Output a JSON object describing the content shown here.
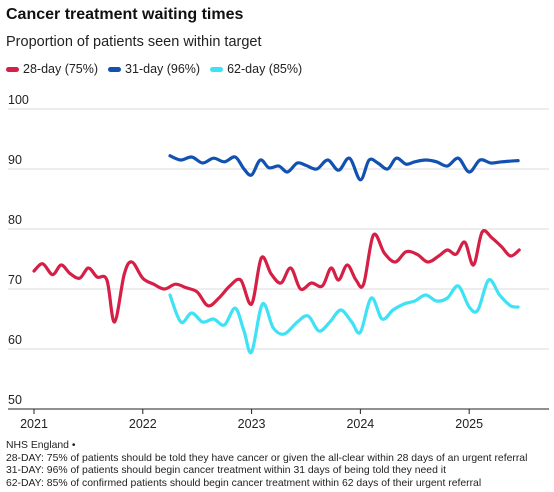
{
  "header": {
    "title": "Cancer treatment waiting times",
    "subtitle": "Proportion of patients seen within target"
  },
  "footer": {
    "source": "NHS England •",
    "notes": [
      "28-DAY: 75% of patients should be told they have cancer or given the all-clear within 28 days of an urgent referral",
      "31-DAY: 96% of patients should begin cancer treatment within 31 days of being told they need it",
      "62-DAY: 85% of confirmed patients should begin cancer treatment within 62 days of their urgent referral"
    ]
  },
  "chart_data": {
    "type": "line",
    "title": "Cancer treatment waiting times",
    "subtitle": "Proportion of patients seen within target",
    "xlabel": "",
    "ylabel": "",
    "xlim": [
      2021.0,
      2025.55
    ],
    "ylim": [
      50,
      100
    ],
    "yticks": [
      50,
      60,
      70,
      80,
      90,
      100
    ],
    "xticks": [
      "2021",
      "2022",
      "2023",
      "2024",
      "2025"
    ],
    "grid": "horizontal",
    "legend_position": "top-left",
    "series": [
      {
        "name": "28-day (75%)",
        "color": "#d61f45",
        "points": [
          [
            2021.0,
            73.0
          ],
          [
            2021.08,
            74.2
          ],
          [
            2021.17,
            72.4
          ],
          [
            2021.25,
            74.0
          ],
          [
            2021.33,
            72.6
          ],
          [
            2021.42,
            71.8
          ],
          [
            2021.5,
            73.5
          ],
          [
            2021.58,
            72.0
          ],
          [
            2021.67,
            71.5
          ],
          [
            2021.74,
            64.5
          ],
          [
            2021.83,
            72.5
          ],
          [
            2021.9,
            74.5
          ],
          [
            2022.0,
            71.8
          ],
          [
            2022.1,
            70.8
          ],
          [
            2022.2,
            70.0
          ],
          [
            2022.3,
            70.8
          ],
          [
            2022.4,
            70.2
          ],
          [
            2022.5,
            69.5
          ],
          [
            2022.6,
            67.2
          ],
          [
            2022.7,
            68.5
          ],
          [
            2022.8,
            70.5
          ],
          [
            2022.9,
            71.5
          ],
          [
            2023.0,
            67.5
          ],
          [
            2023.09,
            75.2
          ],
          [
            2023.18,
            72.5
          ],
          [
            2023.27,
            71.0
          ],
          [
            2023.36,
            73.5
          ],
          [
            2023.45,
            70.0
          ],
          [
            2023.55,
            71.0
          ],
          [
            2023.65,
            70.5
          ],
          [
            2023.73,
            73.5
          ],
          [
            2023.8,
            71.5
          ],
          [
            2023.88,
            74.0
          ],
          [
            2023.96,
            71.5
          ],
          [
            2024.03,
            70.8
          ],
          [
            2024.12,
            79.0
          ],
          [
            2024.22,
            76.0
          ],
          [
            2024.32,
            74.5
          ],
          [
            2024.42,
            76.2
          ],
          [
            2024.52,
            75.8
          ],
          [
            2024.62,
            74.5
          ],
          [
            2024.72,
            75.5
          ],
          [
            2024.8,
            76.5
          ],
          [
            2024.88,
            75.8
          ],
          [
            2024.96,
            77.8
          ],
          [
            2025.04,
            74.0
          ],
          [
            2025.12,
            79.5
          ],
          [
            2025.21,
            78.5
          ],
          [
            2025.3,
            77.0
          ],
          [
            2025.38,
            75.5
          ],
          [
            2025.46,
            76.5
          ]
        ]
      },
      {
        "name": "31-day (96%)",
        "color": "#1151b2",
        "points": [
          [
            2022.25,
            92.2
          ],
          [
            2022.35,
            91.5
          ],
          [
            2022.45,
            92.0
          ],
          [
            2022.55,
            91.0
          ],
          [
            2022.65,
            91.8
          ],
          [
            2022.75,
            91.2
          ],
          [
            2022.85,
            92.0
          ],
          [
            2022.93,
            90.0
          ],
          [
            2023.0,
            89.0
          ],
          [
            2023.08,
            91.5
          ],
          [
            2023.16,
            90.2
          ],
          [
            2023.25,
            90.5
          ],
          [
            2023.33,
            89.5
          ],
          [
            2023.42,
            91.0
          ],
          [
            2023.5,
            90.6
          ],
          [
            2023.6,
            90.0
          ],
          [
            2023.7,
            91.5
          ],
          [
            2023.8,
            89.8
          ],
          [
            2023.9,
            91.8
          ],
          [
            2024.0,
            88.2
          ],
          [
            2024.08,
            91.5
          ],
          [
            2024.16,
            91.0
          ],
          [
            2024.25,
            90.0
          ],
          [
            2024.33,
            91.8
          ],
          [
            2024.42,
            90.8
          ],
          [
            2024.5,
            91.2
          ],
          [
            2024.6,
            91.5
          ],
          [
            2024.7,
            91.2
          ],
          [
            2024.8,
            90.5
          ],
          [
            2024.9,
            91.8
          ],
          [
            2025.0,
            89.5
          ],
          [
            2025.1,
            91.5
          ],
          [
            2025.2,
            91.0
          ],
          [
            2025.3,
            91.2
          ],
          [
            2025.45,
            91.4
          ]
        ]
      },
      {
        "name": "62-day (85%)",
        "color": "#3ee2f4",
        "points": [
          [
            2022.25,
            69.0
          ],
          [
            2022.35,
            64.5
          ],
          [
            2022.45,
            66.0
          ],
          [
            2022.55,
            64.5
          ],
          [
            2022.65,
            65.0
          ],
          [
            2022.75,
            64.0
          ],
          [
            2022.85,
            66.8
          ],
          [
            2022.93,
            63.0
          ],
          [
            2023.0,
            59.5
          ],
          [
            2023.1,
            67.5
          ],
          [
            2023.2,
            63.5
          ],
          [
            2023.3,
            62.5
          ],
          [
            2023.42,
            64.5
          ],
          [
            2023.52,
            65.5
          ],
          [
            2023.62,
            63.0
          ],
          [
            2023.72,
            64.5
          ],
          [
            2023.82,
            66.5
          ],
          [
            2023.92,
            64.5
          ],
          [
            2024.0,
            62.8
          ],
          [
            2024.1,
            68.5
          ],
          [
            2024.2,
            65.0
          ],
          [
            2024.3,
            66.5
          ],
          [
            2024.4,
            67.5
          ],
          [
            2024.5,
            68.0
          ],
          [
            2024.6,
            69.0
          ],
          [
            2024.7,
            68.0
          ],
          [
            2024.8,
            68.5
          ],
          [
            2024.9,
            70.5
          ],
          [
            2025.0,
            67.0
          ],
          [
            2025.08,
            66.5
          ],
          [
            2025.18,
            71.5
          ],
          [
            2025.28,
            69.0
          ],
          [
            2025.38,
            67.2
          ],
          [
            2025.45,
            67.0
          ]
        ]
      }
    ]
  }
}
